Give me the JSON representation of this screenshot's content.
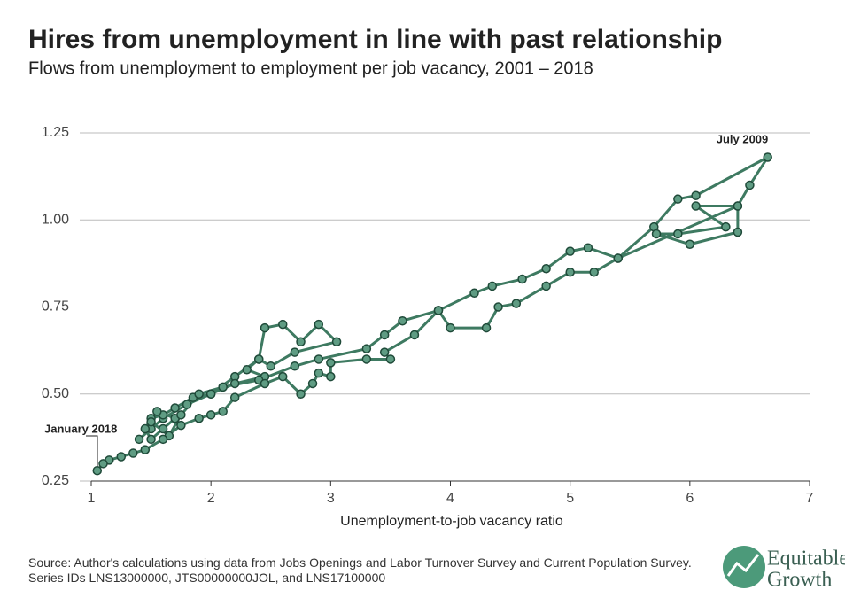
{
  "chart_data": {
    "type": "line",
    "title": "Hires from unemployment in line with past relationship",
    "subtitle": "Flows from unemployment to employment per job vacancy, 2001 – 2018",
    "x_label": "Unemployment-to-job vacancy ratio",
    "source": "Source: Author's calculations using data from Jobs Openings and Labor Turnover Survey and Current Population Survey. Series IDs LNS13000000, JTS00000000JOL, and LNS17100000",
    "brand": [
      "Equitable",
      "Growth"
    ],
    "annotations": [
      "July 2009",
      "January 2018"
    ],
    "xlim": [
      1,
      7
    ],
    "xticks": [
      1,
      2,
      3,
      4,
      5,
      6,
      7
    ],
    "ylim": [
      0.25,
      1.25
    ],
    "yticks": [
      {
        "value": 0.25,
        "label": "0.25"
      },
      {
        "value": 0.5,
        "label": "0.50"
      },
      {
        "value": 0.75,
        "label": "0.75"
      },
      {
        "value": 1.0,
        "label": "1.00"
      },
      {
        "value": 1.25,
        "label": "1.25"
      }
    ],
    "grid": true,
    "markers": true,
    "series": [
      {
        "color": "#3e7a61",
        "x": [
          1.4,
          1.5,
          1.6,
          1.8,
          2.0,
          2.2,
          2.4,
          2.45,
          2.6,
          2.75,
          2.9,
          3.05,
          2.7,
          2.5,
          2.4,
          2.3,
          2.45,
          2.2,
          2.0,
          1.85,
          1.7,
          1.6,
          1.5,
          1.45,
          1.5,
          1.6,
          1.7,
          1.55,
          1.5,
          1.65,
          1.75,
          1.9,
          2.1,
          2.4,
          2.7,
          2.9,
          3.3,
          3.45,
          3.6,
          3.9,
          4.2,
          4.35,
          4.6,
          4.8,
          5.0,
          5.15,
          5.4,
          5.7,
          5.9,
          6.05,
          6.65,
          6.5,
          6.4,
          6.05,
          6.3,
          5.9,
          5.72,
          6.0,
          6.4,
          6.4,
          5.4,
          5.2,
          5.0,
          4.8,
          4.55,
          4.4,
          4.3,
          4.0,
          3.9,
          3.7,
          3.45,
          3.5,
          3.3,
          3.0,
          3.0,
          2.9,
          2.85,
          2.75,
          2.6,
          2.45,
          2.2,
          2.1,
          2.0,
          1.9,
          1.75,
          1.6,
          1.45,
          1.35,
          1.25,
          1.15,
          1.1,
          1.05
        ],
        "values": [
          0.37,
          0.4,
          0.43,
          0.47,
          0.5,
          0.55,
          0.6,
          0.69,
          0.7,
          0.65,
          0.7,
          0.65,
          0.62,
          0.58,
          0.6,
          0.57,
          0.55,
          0.53,
          0.5,
          0.49,
          0.46,
          0.44,
          0.43,
          0.4,
          0.37,
          0.4,
          0.43,
          0.45,
          0.42,
          0.38,
          0.44,
          0.5,
          0.52,
          0.54,
          0.58,
          0.6,
          0.63,
          0.67,
          0.71,
          0.74,
          0.79,
          0.81,
          0.83,
          0.86,
          0.91,
          0.92,
          0.89,
          0.98,
          1.06,
          1.07,
          1.18,
          1.1,
          1.04,
          1.04,
          0.98,
          0.96,
          0.96,
          0.93,
          0.965,
          1.04,
          0.89,
          0.85,
          0.85,
          0.81,
          0.76,
          0.75,
          0.69,
          0.69,
          0.74,
          0.67,
          0.62,
          0.6,
          0.6,
          0.59,
          0.55,
          0.56,
          0.53,
          0.5,
          0.55,
          0.53,
          0.49,
          0.45,
          0.44,
          0.43,
          0.41,
          0.37,
          0.34,
          0.33,
          0.32,
          0.31,
          0.3,
          0.28
        ]
      }
    ]
  }
}
